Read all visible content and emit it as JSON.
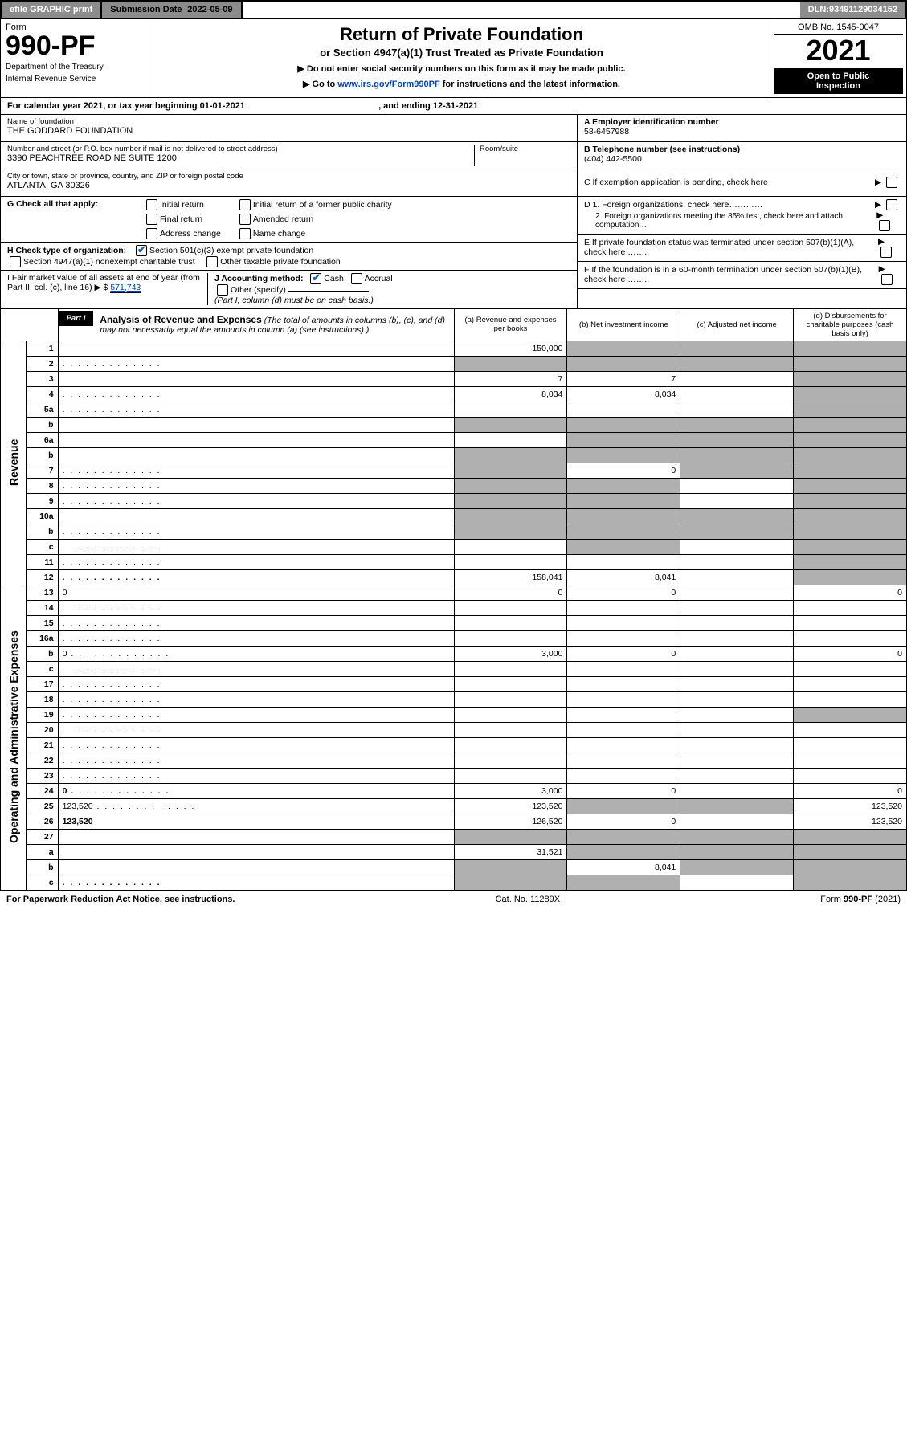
{
  "topbar": {
    "efile": "efile GRAPHIC print",
    "subdate_label": "Submission Date - ",
    "subdate": "2022-05-09",
    "dln_label": "DLN: ",
    "dln": "93491129034152"
  },
  "header": {
    "form_word": "Form",
    "form_num": "990-PF",
    "dept1": "Department of the Treasury",
    "dept2": "Internal Revenue Service",
    "title": "Return of Private Foundation",
    "sub1": "or Section 4947(a)(1) Trust Treated as Private Foundation",
    "sub2a": "▶ Do not enter social security numbers on this form as it may be made public.",
    "sub2b": "▶ Go to ",
    "sub2b_link": "www.irs.gov/Form990PF",
    "sub2b_tail": " for instructions and the latest information.",
    "omb": "OMB No. 1545-0047",
    "year": "2021",
    "open1": "Open to Public",
    "open2": "Inspection"
  },
  "calendar": {
    "text_a": "For calendar year 2021, or tax year beginning ",
    "begin": "01-01-2021",
    "text_b": " , and ending ",
    "end": "12-31-2021"
  },
  "foundation": {
    "name_label": "Name of foundation",
    "name": "THE GODDARD FOUNDATION",
    "addr_label": "Number and street (or P.O. box number if mail is not delivered to street address)",
    "room_label": "Room/suite",
    "addr": "3390 PEACHTREE ROAD NE SUITE 1200",
    "city_label": "City or town, state or province, country, and ZIP or foreign postal code",
    "city": "ATLANTA, GA  30326",
    "ein_label": "A Employer identification number",
    "ein": "58-6457988",
    "tel_label": "B Telephone number (see instructions)",
    "tel": "(404) 442-5500",
    "c_label": "C If exemption application is pending, check here",
    "d1": "D 1. Foreign organizations, check here…………",
    "d2": "2. Foreign organizations meeting the 85% test, check here and attach computation …",
    "e_label": "E  If private foundation status was terminated under section 507(b)(1)(A), check here ……..",
    "f_label": "F  If the foundation is in a 60-month termination under section 507(b)(1)(B), check here …….."
  },
  "g": {
    "label": "G Check all that apply:",
    "opts": [
      "Initial return",
      "Final return",
      "Address change",
      "Initial return of a former public charity",
      "Amended return",
      "Name change"
    ]
  },
  "h": {
    "label": "H Check type of organization:",
    "opt1": "Section 501(c)(3) exempt private foundation",
    "opt2": "Section 4947(a)(1) nonexempt charitable trust",
    "opt3": "Other taxable private foundation"
  },
  "i": {
    "label": "I Fair market value of all assets at end of year (from Part II, col. (c), line 16)",
    "arrow": "▶ $",
    "value": "571,743"
  },
  "j": {
    "label": "J Accounting method:",
    "cash": "Cash",
    "accrual": "Accrual",
    "other": "Other (specify)",
    "note": "(Part I, column (d) must be on cash basis.)"
  },
  "part1": {
    "label": "Part I",
    "title": "Analysis of Revenue and Expenses",
    "title_tail": " (The total of amounts in columns (b), (c), and (d) may not necessarily equal the amounts in column (a) (see instructions).)",
    "col_a": "(a)   Revenue and expenses per books",
    "col_b": "(b)   Net investment income",
    "col_c": "(c)   Adjusted net income",
    "col_d": "(d)  Disbursements for charitable purposes (cash basis only)"
  },
  "side": {
    "revenue": "Revenue",
    "expenses": "Operating and Administrative Expenses"
  },
  "rows": [
    {
      "n": "1",
      "d": "",
      "a": "150,000",
      "b": "",
      "c": "",
      "shade_bcd": true
    },
    {
      "n": "2",
      "d": "",
      "dots": true,
      "a": "",
      "b": "",
      "c": "",
      "shade_all": true
    },
    {
      "n": "3",
      "d": "",
      "a": "7",
      "b": "7",
      "c": "",
      "shade_d": true
    },
    {
      "n": "4",
      "d": "",
      "dots": true,
      "a": "8,034",
      "b": "8,034",
      "c": "",
      "shade_d": true
    },
    {
      "n": "5a",
      "d": "",
      "dots": true,
      "a": "",
      "b": "",
      "c": "",
      "shade_d": true
    },
    {
      "n": "b",
      "d": "",
      "a": "",
      "b": "",
      "c": "",
      "shade_all": true
    },
    {
      "n": "6a",
      "d": "",
      "a": "",
      "b": "",
      "c": "",
      "shade_bcd": true
    },
    {
      "n": "b",
      "d": "",
      "a": "",
      "b": "",
      "c": "",
      "shade_all": true
    },
    {
      "n": "7",
      "d": "",
      "dots": true,
      "a": "",
      "b": "0",
      "c": "",
      "shade_a": true,
      "shade_cd": true
    },
    {
      "n": "8",
      "d": "",
      "dots": true,
      "a": "",
      "b": "",
      "c": "",
      "shade_ab": true,
      "shade_d": true
    },
    {
      "n": "9",
      "d": "",
      "dots": true,
      "a": "",
      "b": "",
      "c": "",
      "shade_ab": true,
      "shade_d": true
    },
    {
      "n": "10a",
      "d": "",
      "a": "",
      "b": "",
      "c": "",
      "shade_all": true
    },
    {
      "n": "b",
      "d": "",
      "dots": true,
      "a": "",
      "b": "",
      "c": "",
      "shade_all": true
    },
    {
      "n": "c",
      "d": "",
      "dots": true,
      "a": "",
      "b": "",
      "c": "",
      "shade_b": true,
      "shade_d": true
    },
    {
      "n": "11",
      "d": "",
      "dots": true,
      "a": "",
      "b": "",
      "c": "",
      "shade_d": true
    },
    {
      "n": "12",
      "d": "",
      "dots": true,
      "bold": true,
      "a": "158,041",
      "b": "8,041",
      "c": "",
      "shade_d": true
    }
  ],
  "exp_rows": [
    {
      "n": "13",
      "d": "0",
      "a": "0",
      "b": "0",
      "c": ""
    },
    {
      "n": "14",
      "d": "",
      "dots": true,
      "a": "",
      "b": "",
      "c": ""
    },
    {
      "n": "15",
      "d": "",
      "dots": true,
      "a": "",
      "b": "",
      "c": ""
    },
    {
      "n": "16a",
      "d": "",
      "dots": true,
      "a": "",
      "b": "",
      "c": ""
    },
    {
      "n": "b",
      "d": "0",
      "dots": true,
      "a": "3,000",
      "b": "0",
      "c": ""
    },
    {
      "n": "c",
      "d": "",
      "dots": true,
      "a": "",
      "b": "",
      "c": ""
    },
    {
      "n": "17",
      "d": "",
      "dots": true,
      "a": "",
      "b": "",
      "c": ""
    },
    {
      "n": "18",
      "d": "",
      "dots": true,
      "a": "",
      "b": "",
      "c": ""
    },
    {
      "n": "19",
      "d": "",
      "dots": true,
      "a": "",
      "b": "",
      "c": "",
      "shade_d": true
    },
    {
      "n": "20",
      "d": "",
      "dots": true,
      "a": "",
      "b": "",
      "c": ""
    },
    {
      "n": "21",
      "d": "",
      "dots": true,
      "a": "",
      "b": "",
      "c": ""
    },
    {
      "n": "22",
      "d": "",
      "dots": true,
      "a": "",
      "b": "",
      "c": ""
    },
    {
      "n": "23",
      "d": "",
      "dots": true,
      "a": "",
      "b": "",
      "c": ""
    },
    {
      "n": "24",
      "d": "0",
      "dots": true,
      "bold": true,
      "a": "3,000",
      "b": "0",
      "c": ""
    },
    {
      "n": "25",
      "d": "123,520",
      "dots": true,
      "a": "123,520",
      "b": "",
      "c": "",
      "shade_bc": true
    },
    {
      "n": "26",
      "d": "123,520",
      "bold": true,
      "a": "126,520",
      "b": "0",
      "c": ""
    },
    {
      "n": "27",
      "d": "",
      "a": "",
      "b": "",
      "c": "",
      "shade_all": true
    },
    {
      "n": "a",
      "d": "",
      "bold": true,
      "a": "31,521",
      "b": "",
      "c": "",
      "shade_bcd": true
    },
    {
      "n": "b",
      "d": "",
      "bold": true,
      "a": "",
      "b": "8,041",
      "c": "",
      "shade_a": true,
      "shade_cd": true
    },
    {
      "n": "c",
      "d": "",
      "dots": true,
      "bold": true,
      "a": "",
      "b": "",
      "c": "",
      "shade_ab": true,
      "shade_d": true
    }
  ],
  "footer": {
    "left": "For Paperwork Reduction Act Notice, see instructions.",
    "mid": "Cat. No. 11289X",
    "right": "Form 990-PF (2021)"
  },
  "colors": {
    "grey": "#8c8c8c",
    "shade": "#b0b0b0",
    "link": "#0044cc",
    "check": "#1a5fb4"
  }
}
